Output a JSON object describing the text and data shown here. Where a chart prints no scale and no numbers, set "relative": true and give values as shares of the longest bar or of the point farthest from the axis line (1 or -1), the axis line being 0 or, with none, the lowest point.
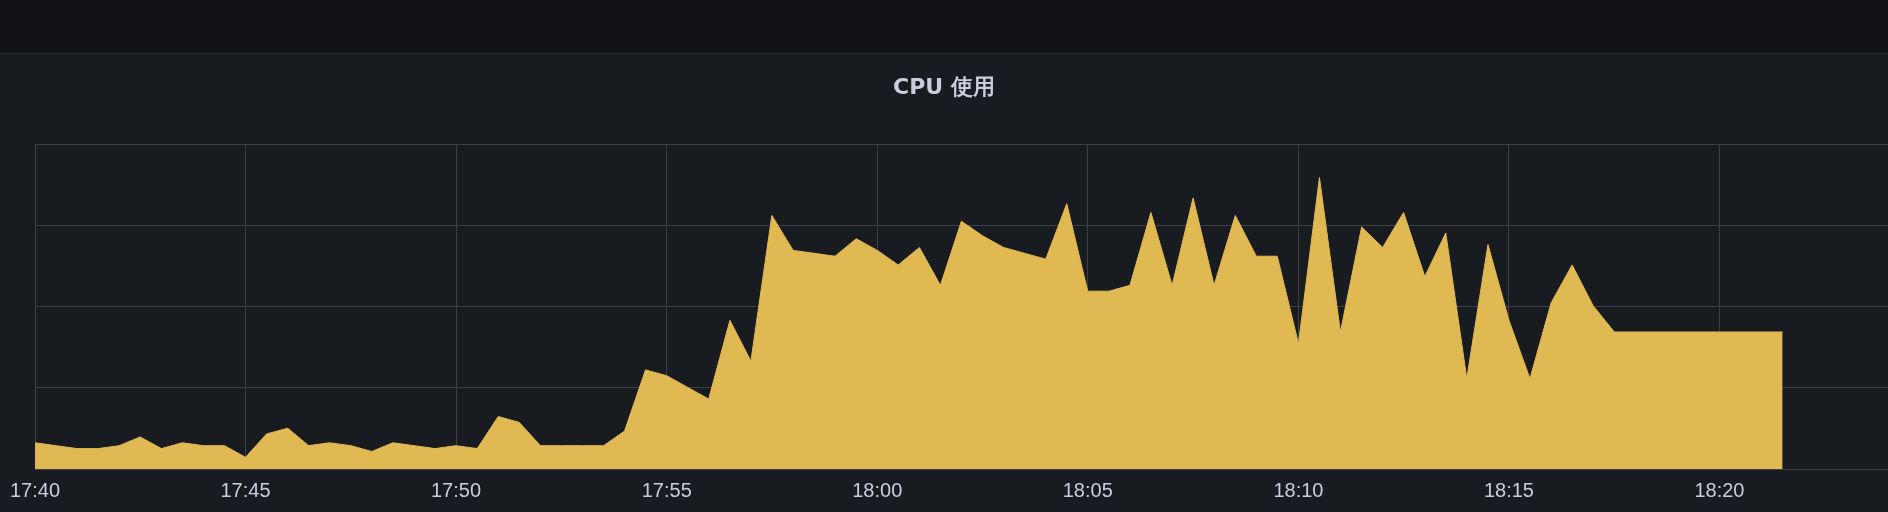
{
  "chart_data": {
    "type": "area",
    "title": "CPU 使用",
    "relative": true,
    "grid": true,
    "x": [
      17.6667,
      17.675,
      17.6833,
      17.6917,
      17.7,
      17.7083,
      17.7167,
      17.725,
      17.7333,
      17.7417,
      17.75,
      17.7583,
      17.7667,
      17.775,
      17.7833,
      17.7917,
      17.8,
      17.8083,
      17.8167,
      17.825,
      17.8333,
      17.8417,
      17.85,
      17.8583,
      17.8667,
      17.875,
      17.8833,
      17.8917,
      17.9,
      17.9083,
      17.9167,
      17.925,
      17.9333,
      17.9417,
      17.95,
      17.9583,
      17.9667,
      17.975,
      17.9833,
      17.9917,
      18.0,
      18.0083,
      18.0167,
      18.025,
      18.0333,
      18.0417,
      18.05,
      18.0583,
      18.0667,
      18.075,
      18.0833,
      18.0917,
      18.1,
      18.1083,
      18.1167,
      18.125,
      18.1333,
      18.1417,
      18.15,
      18.1583,
      18.1667,
      18.175,
      18.1833,
      18.1917,
      18.2,
      18.2083,
      18.2167,
      18.225,
      18.2333,
      18.2417,
      18.25,
      18.2583,
      18.2667,
      18.275,
      18.2833,
      18.2917,
      18.3,
      18.3083,
      18.3167,
      18.325,
      18.3333,
      18.3417,
      18.35,
      18.3583
    ],
    "series": [
      {
        "color": "#e0b953",
        "values": [
          0.09,
          0.08,
          0.07,
          0.07,
          0.08,
          0.11,
          0.07,
          0.09,
          0.08,
          0.08,
          0.04,
          0.12,
          0.14,
          0.08,
          0.09,
          0.08,
          0.06,
          0.09,
          0.08,
          0.07,
          0.08,
          0.07,
          0.18,
          0.16,
          0.08,
          0.08,
          0.08,
          0.08,
          0.13,
          0.34,
          0.32,
          0.28,
          0.24,
          0.51,
          0.37,
          0.87,
          0.75,
          0.74,
          0.73,
          0.79,
          0.75,
          0.7,
          0.76,
          0.63,
          0.85,
          0.8,
          0.76,
          0.74,
          0.72,
          0.91,
          0.61,
          0.61,
          0.63,
          0.88,
          0.63,
          0.93,
          0.63,
          0.87,
          0.73,
          0.73,
          0.43,
          1.0,
          0.47,
          0.83,
          0.76,
          0.88,
          0.66,
          0.81,
          0.31,
          0.77,
          0.51,
          0.31,
          0.57,
          0.7,
          0.56,
          0.47,
          0.47,
          0.47,
          0.47,
          0.47,
          0.47,
          0.47,
          0.47,
          0.47
        ]
      }
    ],
    "xlim": [
      17.6667,
      18.4
    ],
    "xticks": [
      {
        "value": 17.6667,
        "label": "17:40"
      },
      {
        "value": 17.75,
        "label": "17:45"
      },
      {
        "value": 17.8333,
        "label": "17:50"
      },
      {
        "value": 17.9167,
        "label": "17:55"
      },
      {
        "value": 18,
        "label": "18:00"
      },
      {
        "value": 18.0833,
        "label": "18:05"
      },
      {
        "value": 18.1667,
        "label": "18:10"
      },
      {
        "value": 18.25,
        "label": "18:15"
      },
      {
        "value": 18.3333,
        "label": "18:20"
      }
    ]
  }
}
